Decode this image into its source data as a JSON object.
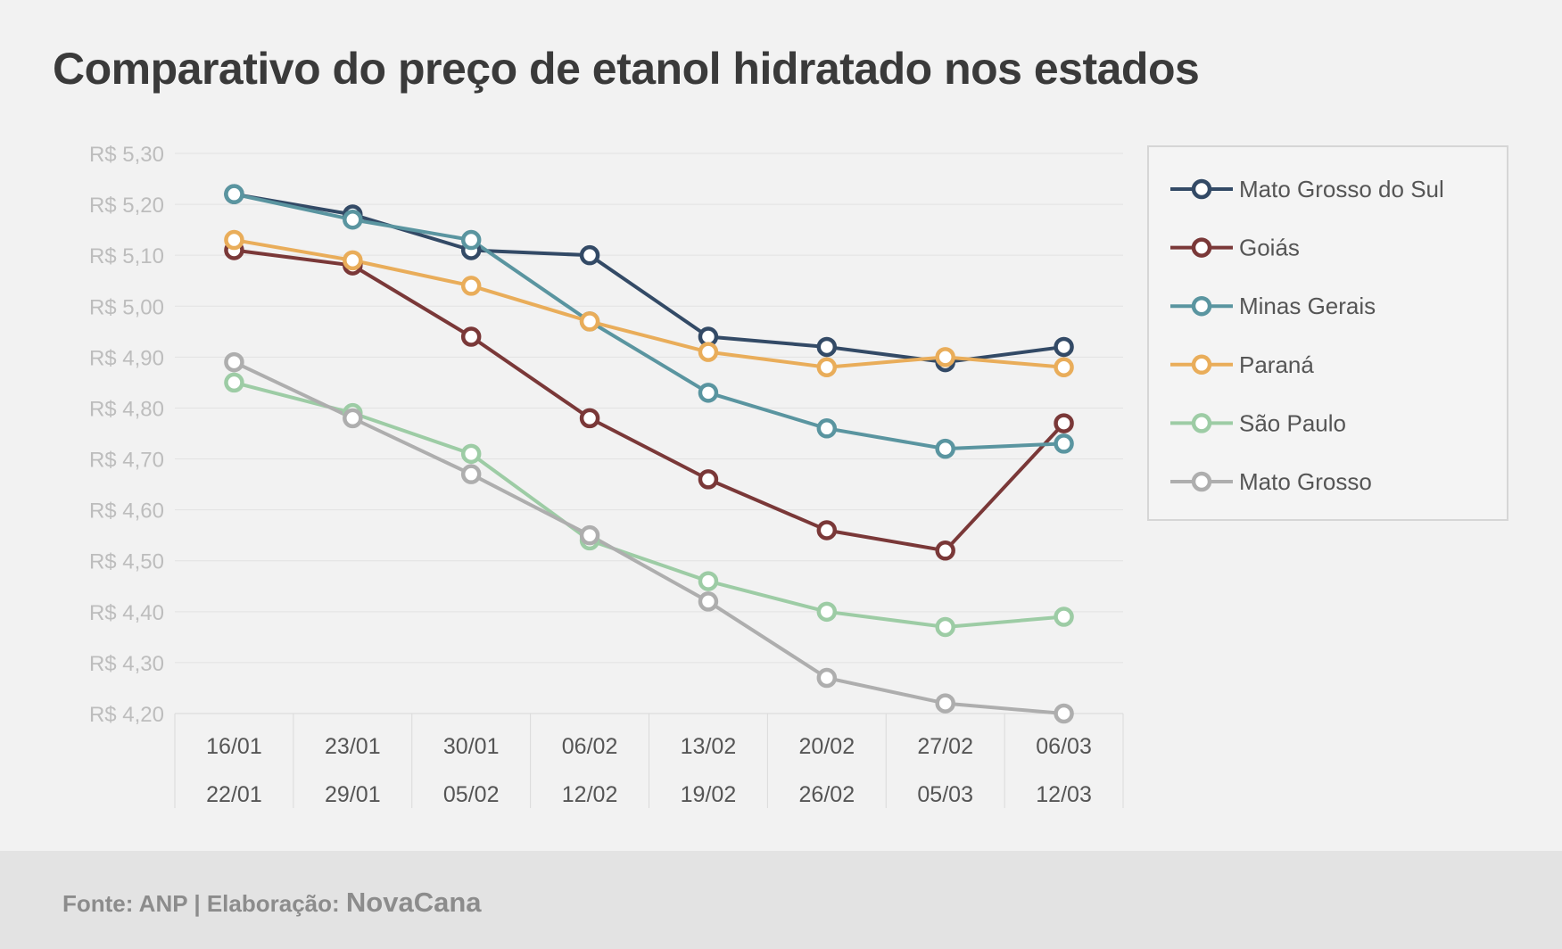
{
  "title": "Comparativo do preço de etanol hidratado nos estados",
  "footer": {
    "source": "Fonte: ANP | Elaboração:",
    "brand": "NovaCana"
  },
  "chart_data": {
    "type": "line",
    "title": "Comparativo do preço de etanol hidratado nos estados",
    "xlabel": "",
    "ylabel": "",
    "ylim": [
      4.2,
      5.3
    ],
    "yticks": [
      "R$ 4,20",
      "R$ 4,30",
      "R$ 4,40",
      "R$ 4,50",
      "R$ 4,60",
      "R$ 4,70",
      "R$ 4,80",
      "R$ 4,90",
      "R$ 5,00",
      "R$ 5,10",
      "R$ 5,20",
      "R$ 5,30"
    ],
    "categories": [
      [
        "16/01",
        "22/01"
      ],
      [
        "23/01",
        "29/01"
      ],
      [
        "30/01",
        "05/02"
      ],
      [
        "06/02",
        "12/02"
      ],
      [
        "13/02",
        "19/02"
      ],
      [
        "20/02",
        "26/02"
      ],
      [
        "27/02",
        "05/03"
      ],
      [
        "06/03",
        "12/03"
      ]
    ],
    "grid": true,
    "legend_position": "right",
    "series": [
      {
        "name": "Mato Grosso do Sul",
        "color": "#334a66",
        "values": [
          5.22,
          5.18,
          5.11,
          5.1,
          4.94,
          4.92,
          4.89,
          4.92
        ]
      },
      {
        "name": "Goiás",
        "color": "#7a3838",
        "values": [
          5.11,
          5.08,
          4.94,
          4.78,
          4.66,
          4.56,
          4.52,
          4.77
        ]
      },
      {
        "name": "Minas Gerais",
        "color": "#5a95a0",
        "values": [
          5.22,
          5.17,
          5.13,
          4.97,
          4.83,
          4.76,
          4.72,
          4.73
        ]
      },
      {
        "name": "Paraná",
        "color": "#e9ad5a",
        "values": [
          5.13,
          5.09,
          5.04,
          4.97,
          4.91,
          4.88,
          4.9,
          4.88
        ]
      },
      {
        "name": "São Paulo",
        "color": "#9dcca5",
        "values": [
          4.85,
          4.79,
          4.71,
          4.54,
          4.46,
          4.4,
          4.37,
          4.39
        ]
      },
      {
        "name": "Mato Grosso",
        "color": "#aeaeae",
        "values": [
          4.89,
          4.78,
          4.67,
          4.55,
          4.42,
          4.27,
          4.22,
          4.2
        ]
      }
    ]
  }
}
